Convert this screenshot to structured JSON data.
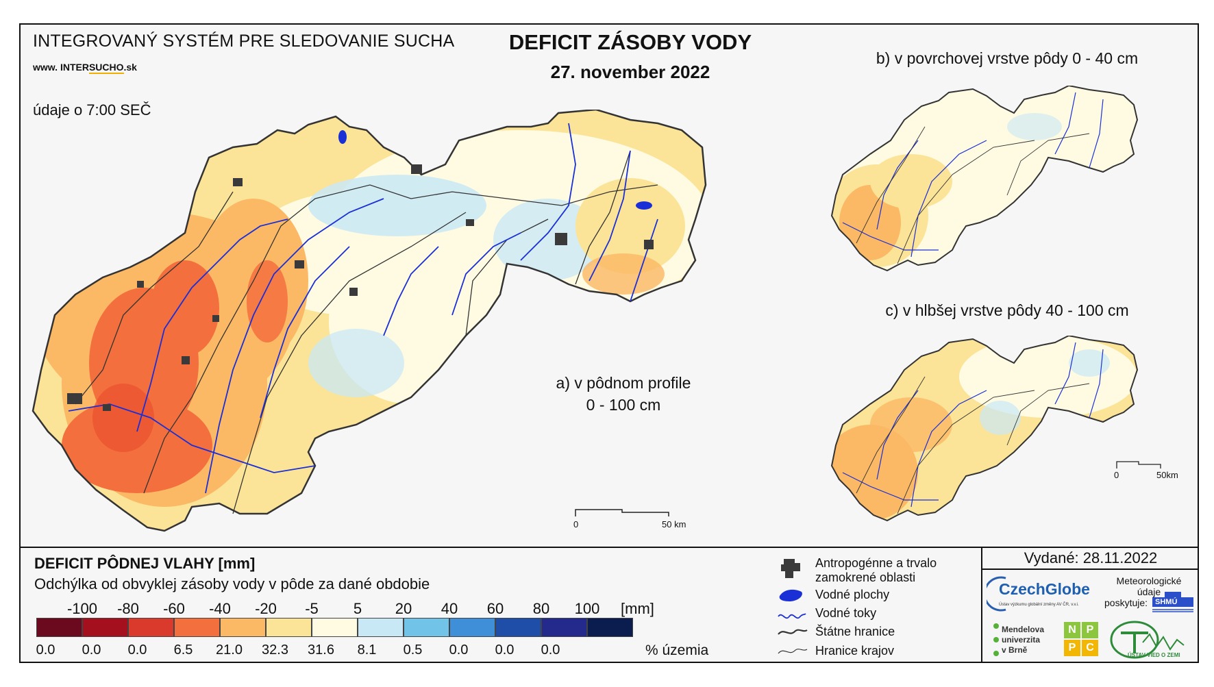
{
  "header": {
    "system_name": "INTEGROVANÝ SYSTÉM PRE SLEDOVANIE SUCHA",
    "url_prefix": "www. ",
    "url_mid": "INTER",
    "url_brand": "SUCHO",
    "url_suffix": ".sk",
    "data_time": "údaje o 7:00 SEČ",
    "title": "DEFICIT ZÁSOBY VODY",
    "date": "27. november 2022"
  },
  "maps": {
    "main": {
      "label_line1": "a) v pôdnom profile",
      "label_line2": "0 - 100 cm",
      "scale_start": "0",
      "scale_end": "50 km"
    },
    "top_right": {
      "label": "b) v povrchovej vrstve pôdy 0 - 40 cm"
    },
    "bottom_right": {
      "label": "c) v hlbšej vrstve pôdy 40 - 100 cm",
      "scale_start": "0",
      "scale_end": "50km"
    }
  },
  "legend": {
    "title": "DEFICIT PÔDNEJ VLAHY [mm]",
    "subtitle": "Odchýlka od obvyklej zásoby vody v pôde za dané obdobie",
    "unit": "[mm]",
    "area_label": "% územia",
    "thresholds": [
      "-100",
      "-80",
      "-60",
      "-40",
      "-20",
      "-5",
      "5",
      "20",
      "40",
      "60",
      "80",
      "100"
    ],
    "classes": [
      {
        "color": "#6b0a1f",
        "percent": "0.0"
      },
      {
        "color": "#a5101f",
        "percent": "0.0"
      },
      {
        "color": "#d93a2b",
        "percent": "0.0"
      },
      {
        "color": "#f36f3d",
        "percent": "6.5"
      },
      {
        "color": "#fbb865",
        "percent": "21.0"
      },
      {
        "color": "#fbe497",
        "percent": "32.3"
      },
      {
        "color": "#fffbe2",
        "percent": "31.6"
      },
      {
        "color": "#c9e8f6",
        "percent": "8.1"
      },
      {
        "color": "#71c3e8",
        "percent": "0.5"
      },
      {
        "color": "#3f8fd8",
        "percent": "0.0"
      },
      {
        "color": "#1f4ea8",
        "percent": "0.0"
      },
      {
        "color": "#232a8c",
        "percent": "0.0"
      },
      {
        "color": "#0b1d4f",
        "percent": ""
      }
    ]
  },
  "symbols": {
    "anthropogenic_line1": "Antropogénne a trvalo",
    "anthropogenic_line2": "zamokrené oblasti",
    "water_bodies": "Vodné plochy",
    "water_streams": "Vodné toky",
    "state_borders": "Štátne hranice",
    "region_borders": "Hranice krajov"
  },
  "issued": "Vydané: 28.11.2022",
  "logos": {
    "czechglobe": "CzechGlobe",
    "czechglobe_sub": "Ústav výzkumu globální změny AV ČR, v.v.i.",
    "meteo_line1": "Meteorologické",
    "meteo_line2": "údaje",
    "meteo_line3": "poskytuje:",
    "shmu": "SHMÚ",
    "mendel_line1": "Mendelova",
    "mendel_line2": "univerzita",
    "mendel_line3": "v Brně",
    "nppc": [
      "N",
      "P",
      "P",
      "C"
    ],
    "uvz": "ÚSTAV VIED O ZEMI"
  },
  "colors": {
    "deep_red": "#a5101f",
    "red": "#d93a2b",
    "orange": "#f36f3d",
    "light_orange": "#fbb865",
    "yellow": "#fbe497",
    "cream": "#fffbe2",
    "light_blue": "#c9e8f6",
    "river_blue": "#1a2fd6",
    "settlement": "#3a3a3a"
  }
}
